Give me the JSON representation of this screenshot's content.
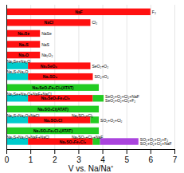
{
  "chart_data": {
    "type": "bar",
    "orientation": "horizontal",
    "xlabel": "V vs. Na/Na⁺",
    "xlim": [
      0,
      7
    ],
    "xticks": [
      0,
      1,
      2,
      3,
      4,
      5,
      6,
      7
    ],
    "grid": true,
    "tick_labels": "x",
    "rows": [
      {
        "label": "NaF",
        "segments": [
          {
            "start": 0.0,
            "end": 6.0,
            "color": "#ff1111"
          }
        ],
        "right_labels": [
          {
            "text": "F₂",
            "x": 6.05
          }
        ]
      },
      {
        "label": "NaCl",
        "segments": [
          {
            "start": 0.0,
            "end": 3.5,
            "color": "#ff1111"
          }
        ],
        "right_labels": [
          {
            "text": "Cl₂",
            "x": 3.55
          }
        ]
      },
      {
        "label": "Na₂Se",
        "segments": [
          {
            "start": 0.0,
            "end": 1.4,
            "color": "#ff1111"
          }
        ],
        "right_labels": [
          {
            "text": "NaSe",
            "x": 1.45
          }
        ]
      },
      {
        "label": "Na₂S",
        "segments": [
          {
            "start": 0.0,
            "end": 1.4,
            "color": "#ff1111"
          }
        ],
        "right_labels": [
          {
            "text": "NaS",
            "x": 1.45
          }
        ]
      },
      {
        "label": "Na₂O",
        "segments": [
          {
            "start": 0.0,
            "end": 1.4,
            "color": "#ff1111"
          }
        ],
        "right_labels": [
          {
            "text": "Na₂O₂",
            "x": 1.45
          }
        ]
      },
      {
        "label": "Na₂SeO₄",
        "top_label": "Na₂Se+Na₂O",
        "segments": [
          {
            "start": 0.0,
            "end": 0.9,
            "color": "#00cccc"
          },
          {
            "start": 0.9,
            "end": 3.5,
            "color": "#ff1111"
          }
        ],
        "right_labels": [
          {
            "text": "SeO₂+O₂",
            "x": 3.55
          }
        ]
      },
      {
        "label": "Na₂SO₄",
        "top_label": "Na₂S+Na₂O",
        "segments": [
          {
            "start": 0.0,
            "end": 0.9,
            "color": "#00cccc"
          },
          {
            "start": 0.9,
            "end": 3.6,
            "color": "#ff1111"
          }
        ],
        "right_labels": [
          {
            "text": "SO₂+O₂",
            "x": 3.65
          }
        ]
      },
      {
        "label": "Na₂SeO₃Fe₂Cl₃(ATAT)",
        "segments": [
          {
            "start": 0.0,
            "end": 3.85,
            "color": "#22cc22"
          }
        ]
      },
      {
        "label": "Na₂SeO₃Fe₂Cl₃",
        "top_label": "Na₂Se+Na₂O+NaF+NaCl",
        "segments": [
          {
            "start": 0.0,
            "end": 0.9,
            "color": "#00cccc"
          },
          {
            "start": 0.9,
            "end": 3.6,
            "color": "#ff1111"
          },
          {
            "start": 3.6,
            "end": 4.05,
            "color": "#22cc22"
          }
        ],
        "right_labels": [
          {
            "text": "SeO₂+O₂+Cl₂+NaF",
            "x": 4.1
          },
          {
            "text": "SeO₂+O₂+Cl₂+F₂",
            "x": 4.1
          }
        ]
      },
      {
        "label": "Na₂SO₃Cl(ATAT)",
        "segments": [
          {
            "start": 0.0,
            "end": 3.85,
            "color": "#22cc22"
          }
        ]
      },
      {
        "label": "Na₂SO₃Cl",
        "top_label": "Na₂S+Na₂O+NaCl",
        "segments": [
          {
            "start": 0.0,
            "end": 0.9,
            "color": "#00cccc"
          },
          {
            "start": 0.9,
            "end": 3.5,
            "color": "#ff1111"
          },
          {
            "start": 3.5,
            "end": 3.85,
            "color": "#22cc22"
          }
        ],
        "right_labels": [
          {
            "text": "Na₂SO₃+Cl₂",
            "x": 2.7
          },
          {
            "text": "SO₂+O₂+Cl₂",
            "x": 3.9
          }
        ]
      },
      {
        "label": "Na₂SO₃Fe₂Cl₃(ATAT)",
        "segments": [
          {
            "start": 0.0,
            "end": 3.85,
            "color": "#22cc22"
          }
        ]
      },
      {
        "label": "Na₂SO₃Fe₂Cl₃",
        "top_label": "Na₂S+Na₂O+NaF+NaCl",
        "segments": [
          {
            "start": 0.0,
            "end": 0.9,
            "color": "#00cccc"
          },
          {
            "start": 0.9,
            "end": 3.6,
            "color": "#ff1111"
          },
          {
            "start": 3.6,
            "end": 3.9,
            "color": "#22cc22"
          },
          {
            "start": 3.9,
            "end": 5.5,
            "color": "#aa44dd"
          }
        ],
        "right_labels": [
          {
            "text": "Na₂SO₃+Cl₂+NaF",
            "x": 2.7
          },
          {
            "text": "SO₂+O₂+Cl₂+F₂",
            "x": 5.55
          },
          {
            "text": "SO₂+O₂+Cl₂+NaF",
            "x": 5.55
          }
        ]
      }
    ]
  }
}
